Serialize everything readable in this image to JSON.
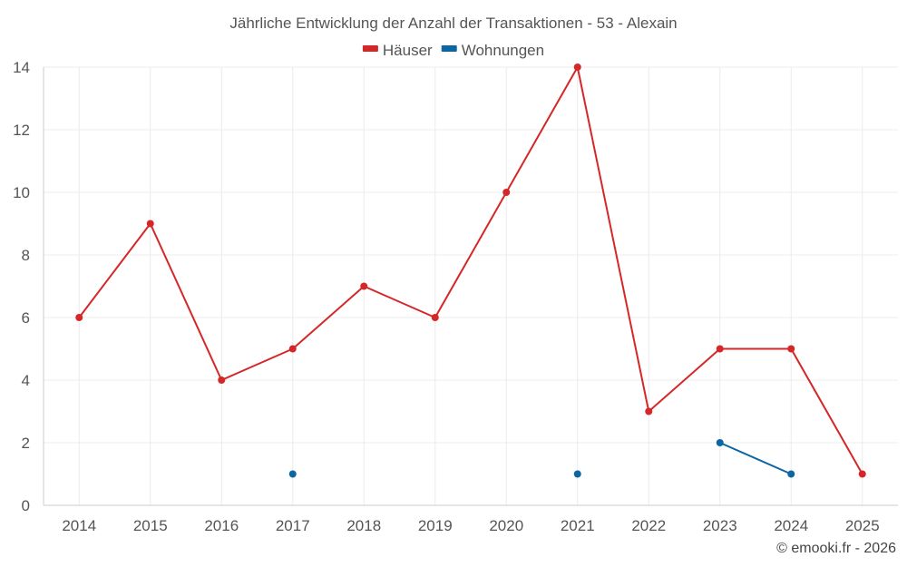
{
  "chart_data": {
    "type": "line",
    "title": "Jährliche Entwicklung der Anzahl der Transaktionen - 53 - Alexain",
    "categories": [
      "2014",
      "2015",
      "2016",
      "2017",
      "2018",
      "2019",
      "2020",
      "2021",
      "2022",
      "2023",
      "2024",
      "2025"
    ],
    "ylim": [
      0,
      14
    ],
    "yticks": [
      0,
      2,
      4,
      6,
      8,
      10,
      12,
      14
    ],
    "grid": true,
    "legend_position": "top-center",
    "series": [
      {
        "name": "Häuser",
        "color": "#d62728",
        "values": [
          6,
          9,
          4,
          5,
          7,
          6,
          10,
          14,
          3,
          5,
          5,
          1
        ]
      },
      {
        "name": "Wohnungen",
        "color": "#0b66a3",
        "values": [
          null,
          null,
          null,
          1,
          null,
          null,
          null,
          1,
          null,
          2,
          1,
          null
        ]
      }
    ]
  },
  "credit": "© emooki.fr - 2026"
}
